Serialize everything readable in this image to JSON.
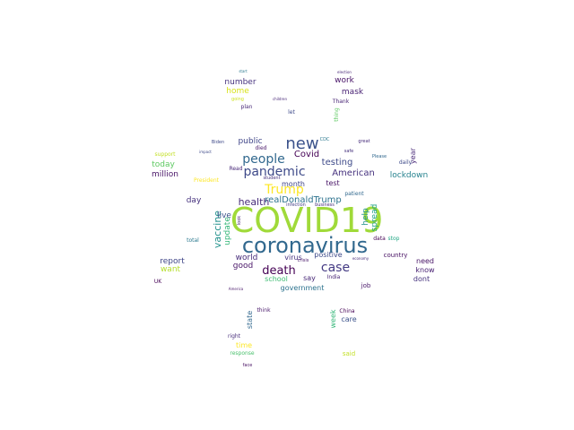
{
  "words": [
    {
      "text": "COVID19",
      "color": "#a0da39"
    },
    {
      "text": "coronavirus",
      "color": "#31688e"
    },
    {
      "text": "new",
      "color": "#3b528b"
    },
    {
      "text": "people",
      "color": "#31688e"
    },
    {
      "text": "pandemic",
      "color": "#3e4a89"
    },
    {
      "text": "Trump",
      "color": "#fde725"
    },
    {
      "text": "case",
      "color": "#443a83"
    },
    {
      "text": "death",
      "color": "#440154"
    },
    {
      "text": "vaccine",
      "color": "#21918c"
    },
    {
      "text": "health",
      "color": "#472c7a"
    },
    {
      "text": "testing",
      "color": "#3e4a89"
    },
    {
      "text": "number",
      "color": "#46327e"
    },
    {
      "text": "home",
      "color": "#d8e219"
    },
    {
      "text": "public",
      "color": "#404688"
    },
    {
      "text": "live",
      "color": "#3b528b"
    },
    {
      "text": "realDonaldTrump",
      "color": "#2c728e"
    },
    {
      "text": "Covid",
      "color": "#440154"
    },
    {
      "text": "American",
      "color": "#46327e"
    },
    {
      "text": "lockdown",
      "color": "#26828e"
    },
    {
      "text": "mask",
      "color": "#482173"
    },
    {
      "text": "work",
      "color": "#481467"
    },
    {
      "text": "today",
      "color": "#5ec962"
    },
    {
      "text": "million",
      "color": "#481467"
    },
    {
      "text": "day",
      "color": "#46327e"
    },
    {
      "text": "update",
      "color": "#35b779"
    },
    {
      "text": "report",
      "color": "#404688"
    },
    {
      "text": "want",
      "color": "#b5de2b"
    },
    {
      "text": "good",
      "color": "#481467"
    },
    {
      "text": "world",
      "color": "#472c7a"
    },
    {
      "text": "school",
      "color": "#3fbc73"
    },
    {
      "text": "government",
      "color": "#2c728e"
    },
    {
      "text": "say",
      "color": "#482878"
    },
    {
      "text": "virus",
      "color": "#46327e"
    },
    {
      "text": "positive",
      "color": "#3e4a89"
    },
    {
      "text": "month",
      "color": "#404688"
    },
    {
      "text": "test",
      "color": "#481467"
    },
    {
      "text": "help",
      "color": "#21918c"
    },
    {
      "text": "spread",
      "color": "#1fa187"
    },
    {
      "text": "year",
      "color": "#482878"
    },
    {
      "text": "need",
      "color": "#481467"
    },
    {
      "text": "know",
      "color": "#482173"
    },
    {
      "text": "dont",
      "color": "#46327e"
    },
    {
      "text": "country",
      "color": "#471063"
    },
    {
      "text": "job",
      "color": "#481769"
    },
    {
      "text": "week",
      "color": "#35b779"
    },
    {
      "text": "state",
      "color": "#31688e"
    },
    {
      "text": "care",
      "color": "#3b528b"
    },
    {
      "text": "time",
      "color": "#fde725"
    },
    {
      "text": "right",
      "color": "#472c7a"
    },
    {
      "text": "response",
      "color": "#4ac16d"
    },
    {
      "text": "said",
      "color": "#c2df23"
    },
    {
      "text": "China",
      "color": "#440154"
    },
    {
      "text": "India",
      "color": "#482475"
    },
    {
      "text": "UK",
      "color": "#440154"
    },
    {
      "text": "think",
      "color": "#481769"
    },
    {
      "text": "plan",
      "color": "#482878"
    },
    {
      "text": "going",
      "color": "#cde11d"
    },
    {
      "text": "let",
      "color": "#3e4a89"
    },
    {
      "text": "Thank",
      "color": "#482475"
    },
    {
      "text": "thing",
      "color": "#5ec962"
    },
    {
      "text": "died",
      "color": "#481769"
    },
    {
      "text": "CDC",
      "color": "#2a788e"
    },
    {
      "text": "support",
      "color": "#c2df23"
    },
    {
      "text": "daily",
      "color": "#3e4a89"
    },
    {
      "text": "total",
      "color": "#2a788e"
    },
    {
      "text": "patient",
      "color": "#31688e"
    },
    {
      "text": "data",
      "color": "#440154"
    },
    {
      "text": "stop",
      "color": "#22a785"
    },
    {
      "text": "infection",
      "color": "#433e85"
    },
    {
      "text": "business",
      "color": "#472c7a"
    },
    {
      "text": "student",
      "color": "#46327e"
    },
    {
      "text": "President",
      "color": "#fde725"
    },
    {
      "text": "Read",
      "color": "#482878"
    },
    {
      "text": "Biden",
      "color": "#3e4a89"
    },
    {
      "text": "crisis",
      "color": "#481769"
    },
    {
      "text": "face",
      "color": "#471063"
    },
    {
      "text": "Please",
      "color": "#31688e"
    },
    {
      "text": "great",
      "color": "#472c7a"
    },
    {
      "text": "safe",
      "color": "#46327e"
    },
    {
      "text": "start",
      "color": "#2a788e"
    },
    {
      "text": "election",
      "color": "#482878"
    },
    {
      "text": "impact",
      "color": "#3e4a89"
    },
    {
      "text": "look",
      "color": "#482475"
    },
    {
      "text": "children",
      "color": "#482878"
    },
    {
      "text": "America",
      "color": "#481769"
    },
    {
      "text": "economy",
      "color": "#472c7a"
    }
  ]
}
